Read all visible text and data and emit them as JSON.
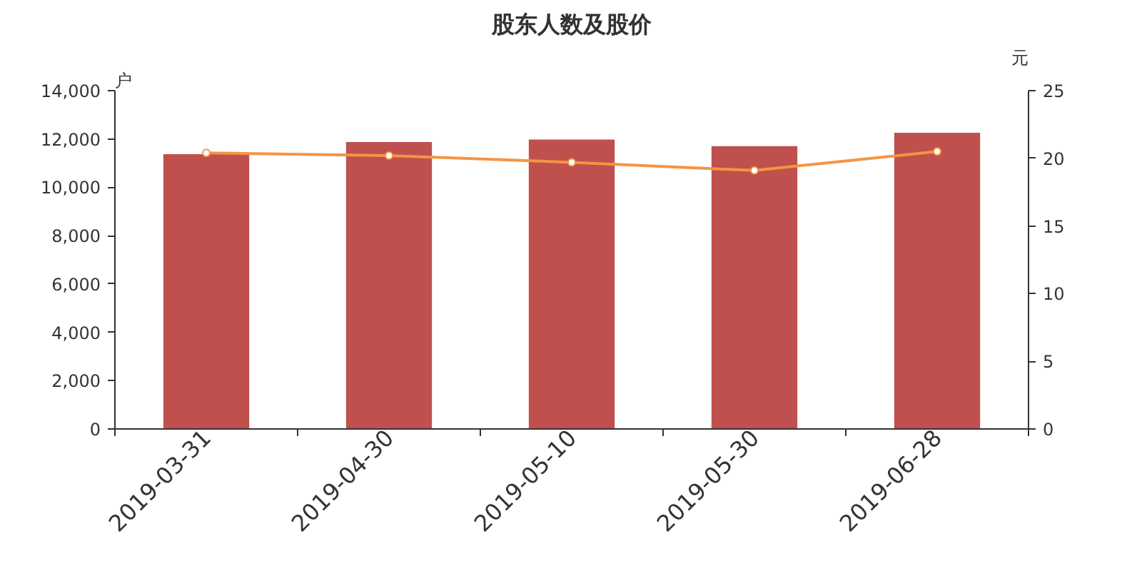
{
  "chart_data": {
    "type": "bar",
    "title": "股东人数及股价",
    "ylabel": "户",
    "y2label": "元",
    "categories": [
      "2019-03-31",
      "2019-04-30",
      "2019-05-10",
      "2019-05-30",
      "2019-06-28"
    ],
    "series": [
      {
        "color": "#c0504d",
        "values": [
          11370,
          11870,
          11980,
          11700,
          12260
        ]
      },
      {
        "type": "line",
        "axis": "y2",
        "color": "#f59443",
        "marker": "circle",
        "values": [
          20.4,
          20.2,
          19.7,
          19.1,
          20.5
        ]
      }
    ],
    "ylim": [
      0,
      14000
    ],
    "yticks": [
      {
        "value": 0,
        "label": "0"
      },
      {
        "value": 2000,
        "label": "2,000"
      },
      {
        "value": 4000,
        "label": "4,000"
      },
      {
        "value": 6000,
        "label": "6,000"
      },
      {
        "value": 8000,
        "label": "8,000"
      },
      {
        "value": 10000,
        "label": "10,000"
      },
      {
        "value": 12000,
        "label": "12,000"
      },
      {
        "value": 14000,
        "label": "14,000"
      }
    ],
    "y2lim": [
      0,
      25
    ],
    "y2ticks": [
      0,
      5,
      10,
      15,
      20,
      25
    ],
    "grid": false
  }
}
